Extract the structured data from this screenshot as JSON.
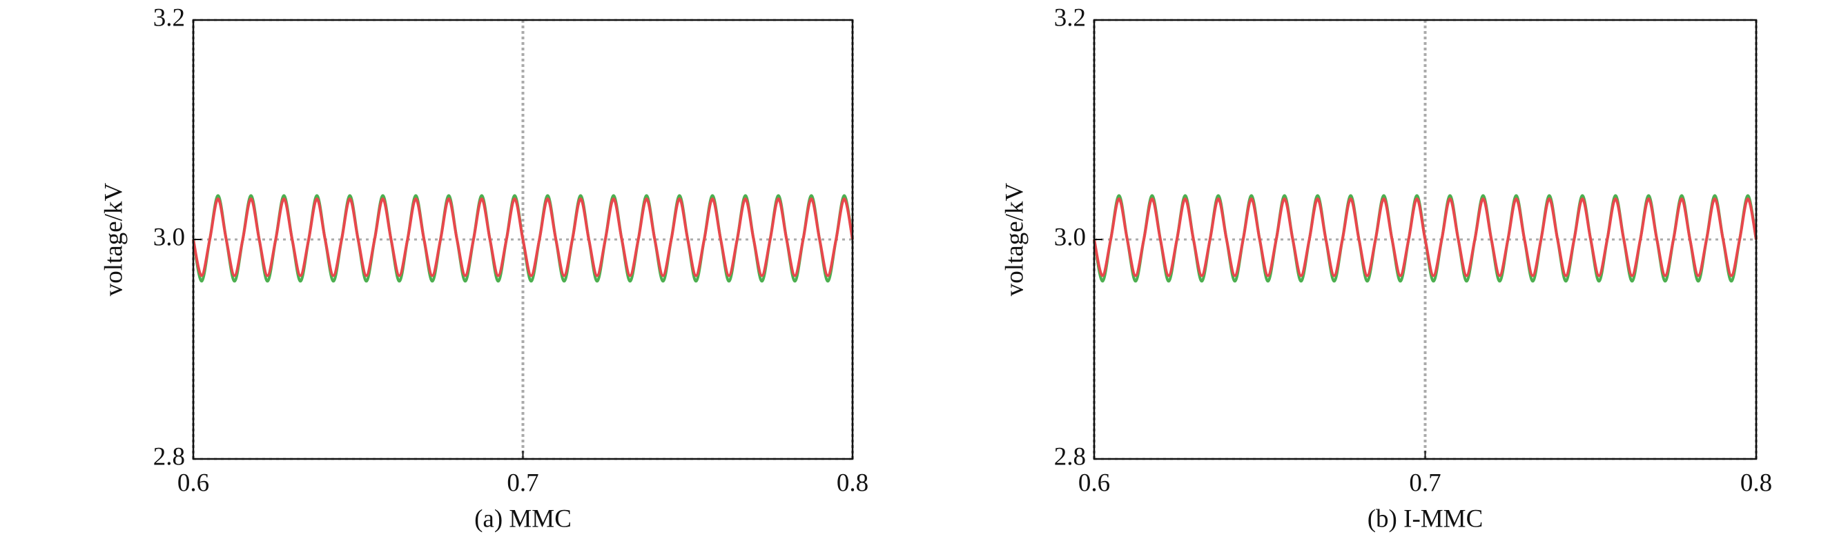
{
  "chart_data": [
    {
      "type": "line",
      "caption": "(a) MMC",
      "ylabel": "voltage/kV",
      "xlim": [
        0.6,
        0.8
      ],
      "xticks": [
        0.6,
        0.7,
        0.8
      ],
      "ylim": [
        2.8,
        3.2
      ],
      "yticks": [
        2.8,
        {
          "value": 3,
          "label": "3.0"
        },
        3.2
      ],
      "grid": true,
      "x": [
        0.6,
        0.6025,
        0.605,
        0.6075,
        0.61,
        0.6125,
        0.615,
        0.6175,
        0.62,
        0.6225,
        0.625,
        0.6275,
        0.63,
        0.6325,
        0.635,
        0.6375,
        0.64,
        0.6425,
        0.645,
        0.6475,
        0.65,
        0.6525,
        0.655,
        0.6575,
        0.66,
        0.6625,
        0.665,
        0.6675,
        0.67,
        0.6725,
        0.675,
        0.6775,
        0.68,
        0.6825,
        0.685,
        0.6875,
        0.69,
        0.6925,
        0.695,
        0.6975,
        0.7,
        0.7025,
        0.705,
        0.7075,
        0.71,
        0.7125,
        0.715,
        0.7175,
        0.72,
        0.7225,
        0.725,
        0.7275,
        0.73,
        0.7325,
        0.735,
        0.7375,
        0.74,
        0.7425,
        0.745,
        0.7475,
        0.75,
        0.7525,
        0.755,
        0.7575,
        0.76,
        0.7625,
        0.765,
        0.7675,
        0.77,
        0.7725,
        0.775,
        0.7775,
        0.78,
        0.7825,
        0.785,
        0.7875,
        0.79,
        0.7925,
        0.795,
        0.7975,
        0.8
      ],
      "series": [
        {
          "color": "#4caf50",
          "values": [
            3,
            2.962,
            3,
            3.04,
            3,
            2.962,
            3,
            3.04,
            3,
            2.962,
            3,
            3.04,
            3,
            2.962,
            3,
            3.04,
            3,
            2.962,
            3,
            3.04,
            3,
            2.962,
            3,
            3.04,
            3,
            2.962,
            3,
            3.04,
            3,
            2.962,
            3,
            3.04,
            3,
            2.962,
            3,
            3.04,
            3,
            2.962,
            3,
            3.04,
            3,
            2.962,
            3,
            3.04,
            3,
            2.962,
            3,
            3.04,
            3,
            2.962,
            3,
            3.04,
            3,
            2.962,
            3,
            3.04,
            3,
            2.962,
            3,
            3.04,
            3,
            2.962,
            3,
            3.04,
            3,
            2.962,
            3,
            3.04,
            3,
            2.962,
            3,
            3.04,
            3,
            2.962,
            3,
            3.04,
            3,
            2.962,
            3,
            3.04,
            3
          ]
        },
        {
          "color": "#e8474c",
          "values": [
            3,
            2.967,
            3,
            3.037,
            3,
            2.967,
            3,
            3.037,
            3,
            2.967,
            3,
            3.037,
            3,
            2.967,
            3,
            3.037,
            3,
            2.967,
            3,
            3.037,
            3,
            2.967,
            3,
            3.037,
            3,
            2.967,
            3,
            3.037,
            3,
            2.967,
            3,
            3.037,
            3,
            2.967,
            3,
            3.037,
            3,
            2.967,
            3,
            3.037,
            3,
            2.967,
            3,
            3.037,
            3,
            2.967,
            3,
            3.037,
            3,
            2.967,
            3,
            3.037,
            3,
            2.967,
            3,
            3.037,
            3,
            2.967,
            3,
            3.037,
            3,
            2.967,
            3,
            3.037,
            3,
            2.967,
            3,
            3.037,
            3,
            2.967,
            3,
            3.037,
            3,
            2.967,
            3,
            3.037,
            3,
            2.967,
            3,
            3.037,
            3
          ]
        }
      ]
    },
    {
      "type": "line",
      "caption": "(b) I-MMC",
      "ylabel": "voltage/kV",
      "xlim": [
        0.6,
        0.8
      ],
      "xticks": [
        0.6,
        0.7,
        0.8
      ],
      "ylim": [
        2.8,
        3.2
      ],
      "yticks": [
        2.8,
        {
          "value": 3,
          "label": "3.0"
        },
        3.2
      ],
      "grid": true,
      "x": [
        0.6,
        0.6025,
        0.605,
        0.6075,
        0.61,
        0.6125,
        0.615,
        0.6175,
        0.62,
        0.6225,
        0.625,
        0.6275,
        0.63,
        0.6325,
        0.635,
        0.6375,
        0.64,
        0.6425,
        0.645,
        0.6475,
        0.65,
        0.6525,
        0.655,
        0.6575,
        0.66,
        0.6625,
        0.665,
        0.6675,
        0.67,
        0.6725,
        0.675,
        0.6775,
        0.68,
        0.6825,
        0.685,
        0.6875,
        0.69,
        0.6925,
        0.695,
        0.6975,
        0.7,
        0.7025,
        0.705,
        0.7075,
        0.71,
        0.7125,
        0.715,
        0.7175,
        0.72,
        0.7225,
        0.725,
        0.7275,
        0.73,
        0.7325,
        0.735,
        0.7375,
        0.74,
        0.7425,
        0.745,
        0.7475,
        0.75,
        0.7525,
        0.755,
        0.7575,
        0.76,
        0.7625,
        0.765,
        0.7675,
        0.77,
        0.7725,
        0.775,
        0.7775,
        0.78,
        0.7825,
        0.785,
        0.7875,
        0.79,
        0.7925,
        0.795,
        0.7975,
        0.8
      ],
      "series": [
        {
          "color": "#4caf50",
          "values": [
            3,
            2.962,
            3,
            3.04,
            3,
            2.962,
            3,
            3.04,
            3,
            2.962,
            3,
            3.04,
            3,
            2.962,
            3,
            3.04,
            3,
            2.962,
            3,
            3.04,
            3,
            2.962,
            3,
            3.04,
            3,
            2.962,
            3,
            3.04,
            3,
            2.962,
            3,
            3.04,
            3,
            2.962,
            3,
            3.04,
            3,
            2.962,
            3,
            3.04,
            3,
            2.962,
            3,
            3.04,
            3,
            2.962,
            3,
            3.04,
            3,
            2.962,
            3,
            3.04,
            3,
            2.962,
            3,
            3.04,
            3,
            2.962,
            3,
            3.04,
            3,
            2.962,
            3,
            3.04,
            3,
            2.962,
            3,
            3.04,
            3,
            2.962,
            3,
            3.04,
            3,
            2.962,
            3,
            3.04,
            3,
            2.962,
            3,
            3.04,
            3
          ]
        },
        {
          "color": "#e8474c",
          "values": [
            3,
            2.967,
            3,
            3.037,
            3,
            2.967,
            3,
            3.037,
            3,
            2.967,
            3,
            3.037,
            3,
            2.967,
            3,
            3.037,
            3,
            2.967,
            3,
            3.037,
            3,
            2.967,
            3,
            3.037,
            3,
            2.967,
            3,
            3.037,
            3,
            2.967,
            3,
            3.037,
            3,
            2.967,
            3,
            3.037,
            3,
            2.967,
            3,
            3.037,
            3,
            2.967,
            3,
            3.037,
            3,
            2.967,
            3,
            3.037,
            3,
            2.967,
            3,
            3.037,
            3,
            2.967,
            3,
            3.037,
            3,
            2.967,
            3,
            3.037,
            3,
            2.967,
            3,
            3.037,
            3,
            2.967,
            3,
            3.037,
            3,
            2.967,
            3,
            3.037,
            3,
            2.967,
            3,
            3.037,
            3,
            2.967,
            3,
            3.037,
            3
          ]
        }
      ]
    }
  ]
}
